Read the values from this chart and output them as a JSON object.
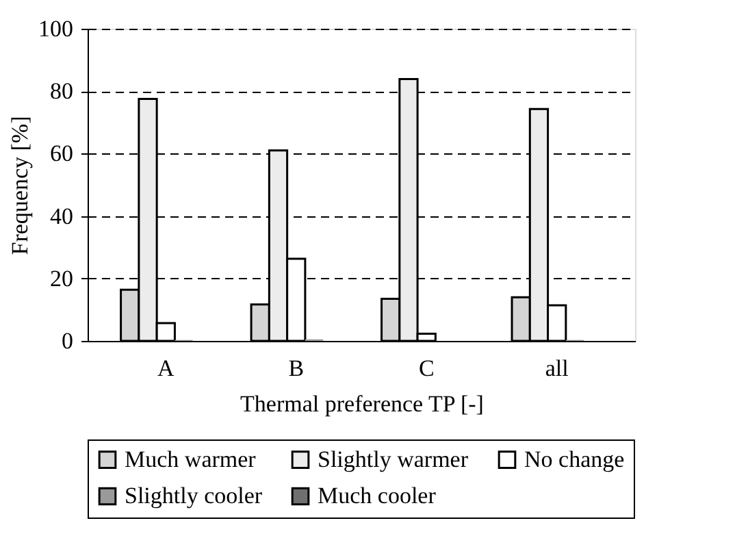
{
  "chart_data": {
    "type": "bar",
    "xlabel": "Thermal preference TP [-]",
    "ylabel": "Frequency [%]",
    "categories": [
      "A",
      "B",
      "C",
      "all"
    ],
    "series": [
      {
        "name": "Much warmer",
        "color": "#d4d4d4",
        "values": [
          16.4,
          11.7,
          13.5,
          14.0
        ]
      },
      {
        "name": "Slightly warmer",
        "color": "#ececec",
        "values": [
          77.5,
          61.0,
          83.9,
          74.3
        ]
      },
      {
        "name": "No change",
        "color": "#ffffff",
        "values": [
          5.7,
          26.3,
          2.3,
          11.4
        ]
      },
      {
        "name": "Slightly cooler",
        "color": "#9a9a9a",
        "values": [
          0.3,
          0.5,
          0,
          0.3
        ]
      },
      {
        "name": "Much cooler",
        "color": "#707070",
        "values": [
          0,
          0,
          0,
          0
        ]
      }
    ],
    "ylim": [
      0,
      100
    ],
    "yticks": [
      0,
      20,
      40,
      60,
      80,
      100
    ],
    "grid": "y",
    "legend": "bottom"
  }
}
